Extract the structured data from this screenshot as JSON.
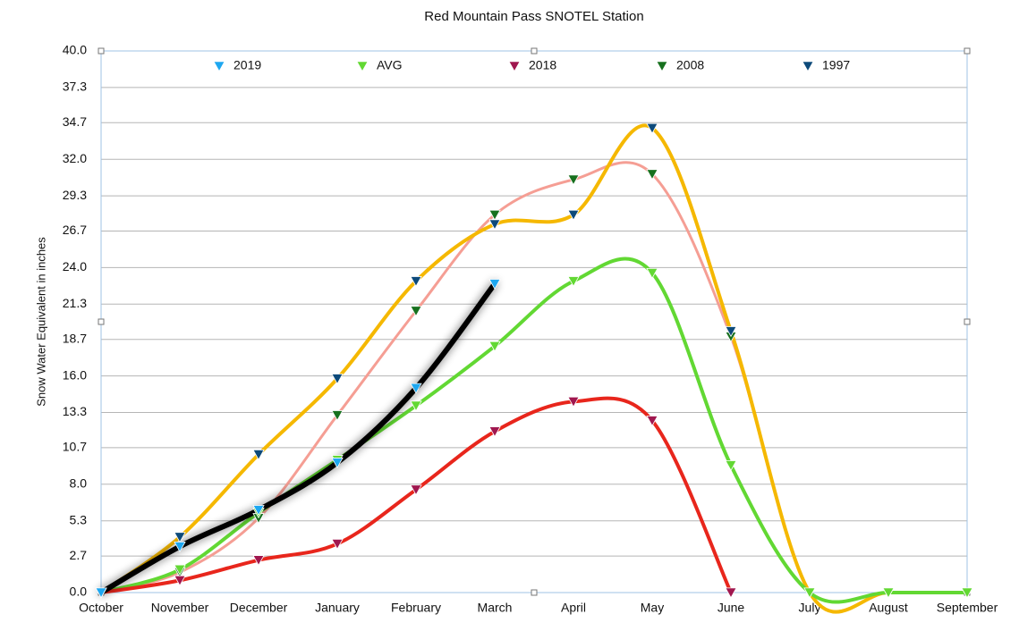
{
  "chart_data": {
    "type": "line",
    "title": "Red Mountain Pass SNOTEL Station",
    "y_label": "Snow Water Equivalent in inches",
    "categories": [
      "October",
      "November",
      "December",
      "January",
      "February",
      "March",
      "April",
      "May",
      "June",
      "July",
      "August",
      "September"
    ],
    "series": [
      {
        "name": "2019",
        "color": "#000000",
        "marker_color": "#1ea7f0",
        "values": [
          0,
          3.4,
          6.1,
          9.6,
          15.1,
          22.8,
          null,
          null,
          null,
          null,
          null,
          null
        ]
      },
      {
        "name": "AVG",
        "color": "#62d833",
        "marker_color": "#62d833",
        "values": [
          0,
          1.7,
          5.9,
          9.8,
          13.8,
          18.2,
          23.0,
          23.6,
          9.4,
          0,
          0,
          0
        ]
      },
      {
        "name": "2018",
        "color": "#e8261c",
        "marker_color": "#a0174f",
        "values": [
          0,
          0.9,
          2.4,
          3.6,
          7.6,
          11.9,
          14.1,
          12.7,
          0,
          null,
          null,
          null
        ]
      },
      {
        "name": "2008",
        "color": "#f59e94",
        "marker_color": "#17701e",
        "values": [
          0,
          1.5,
          5.5,
          13.1,
          20.8,
          27.9,
          30.5,
          30.9,
          18.9,
          0,
          0,
          0
        ]
      },
      {
        "name": "1997",
        "color": "#f5b800",
        "marker_color": "#0d4a7a",
        "values": [
          0,
          4.1,
          10.2,
          15.8,
          23.0,
          27.2,
          27.9,
          34.3,
          19.3,
          0,
          0,
          0
        ]
      }
    ],
    "ylim": [
      0,
      40
    ],
    "yticks": [
      {
        "value": 0,
        "label": "0.0"
      },
      2.7,
      5.3,
      {
        "value": 8,
        "label": "8.0"
      },
      10.7,
      13.3,
      {
        "value": 16,
        "label": "16.0"
      },
      18.7,
      21.3,
      {
        "value": 24,
        "label": "24.0"
      },
      26.7,
      29.3,
      {
        "value": 32,
        "label": "32.0"
      },
      34.7,
      37.3,
      {
        "value": 40,
        "label": "40.0"
      }
    ],
    "grid": true,
    "legend": "top"
  }
}
